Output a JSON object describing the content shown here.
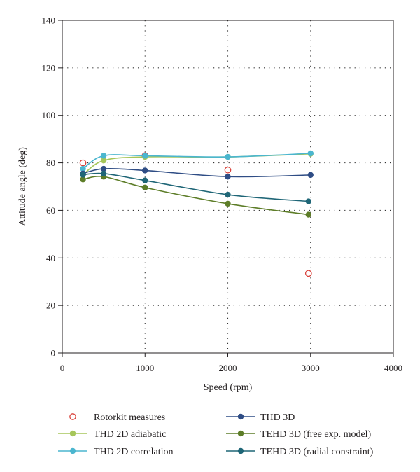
{
  "chart_data": {
    "type": "line",
    "title": "",
    "xlabel": "Speed (rpm)",
    "ylabel": "Attitude angle (deg)",
    "xlim": [
      0,
      4000
    ],
    "ylim": [
      0,
      140
    ],
    "xticks": [
      0,
      1000,
      2000,
      3000,
      4000
    ],
    "yticks": [
      0,
      20,
      40,
      60,
      80,
      100,
      120,
      140
    ],
    "grid": "dotted",
    "legend_position": "bottom",
    "series": [
      {
        "name": "Rotorkit measures",
        "style": "open-marker",
        "color": "#d9423b",
        "x": [
          250,
          1000,
          2000,
          2975
        ],
        "y": [
          80,
          83,
          77,
          33.5
        ]
      },
      {
        "name": "THD 2D adiabatic",
        "style": "line-marker",
        "color": "#a6c65a",
        "x": [
          250,
          500,
          1000,
          2000,
          3000
        ],
        "y": [
          75,
          81,
          82.5,
          82.5,
          83.8
        ]
      },
      {
        "name": "THD 2D correlation",
        "style": "line-marker",
        "color": "#4bb6cf",
        "x": [
          250,
          500,
          1000,
          2000,
          3000
        ],
        "y": [
          77.5,
          83,
          83,
          82.5,
          84
        ]
      },
      {
        "name": "THD 3D",
        "style": "line-marker",
        "color": "#2f4d85",
        "x": [
          250,
          500,
          1000,
          2000,
          3000
        ],
        "y": [
          75.5,
          77.5,
          76.8,
          74.2,
          74.9
        ]
      },
      {
        "name": "TEHD 3D (free exp. model)",
        "style": "line-marker",
        "color": "#5d7d28",
        "x": [
          250,
          500,
          1000,
          2000,
          2975
        ],
        "y": [
          73,
          74.2,
          69.6,
          62.8,
          58.2
        ]
      },
      {
        "name": "TEHD 3D (radial constraint)",
        "style": "line-marker",
        "color": "#1f6677",
        "x": [
          250,
          500,
          1000,
          2000,
          2975
        ],
        "y": [
          75,
          75.5,
          72.6,
          66.6,
          63.8
        ]
      }
    ]
  }
}
